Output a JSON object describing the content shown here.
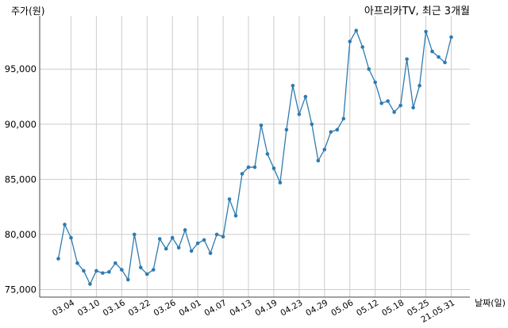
{
  "chart_data": {
    "type": "line",
    "title": "아프리카TV, 최근 3개월",
    "ylabel": "주가(원)",
    "xlabel": "날짜(일)",
    "ylim": [
      75000,
      99000
    ],
    "yticks": [
      75000,
      80000,
      85000,
      90000,
      95000
    ],
    "ytick_labels": [
      "75,000",
      "80,000",
      "85,000",
      "90,000",
      "95,000"
    ],
    "grid": true,
    "xtick_labels": [
      "03.04",
      "03.10",
      "03.16",
      "03.22",
      "03.26",
      "04.01",
      "04.07",
      "04.13",
      "04.19",
      "04.23",
      "04.29",
      "05.06",
      "05.12",
      "05.18",
      "05.25",
      "21.05.31"
    ],
    "xtick_index": [
      2,
      6,
      10,
      14,
      18,
      22,
      26,
      30,
      34,
      38,
      42,
      46,
      50,
      54,
      58,
      62
    ],
    "color": "#2e7bb0",
    "series": [
      {
        "values": [
          77800,
          80900,
          79700,
          77400,
          76700,
          75500,
          76700,
          76500,
          76600,
          77400,
          76800,
          75900,
          80000,
          77000,
          76400,
          76800,
          79600,
          78700,
          79700,
          78800,
          80400,
          78500,
          79200,
          79500,
          78300,
          80000,
          79800,
          83200,
          81700,
          85500,
          86100,
          86100,
          89900,
          87300,
          86000,
          84700,
          89500,
          93500,
          90900,
          92500,
          90000,
          86700,
          87700,
          89300,
          89500,
          90500,
          97500,
          98500,
          97000,
          95000,
          93800,
          91900,
          92100,
          91100,
          91700,
          95900,
          91500,
          93500,
          98400,
          96600,
          96100,
          95600,
          97900
        ]
      }
    ]
  }
}
